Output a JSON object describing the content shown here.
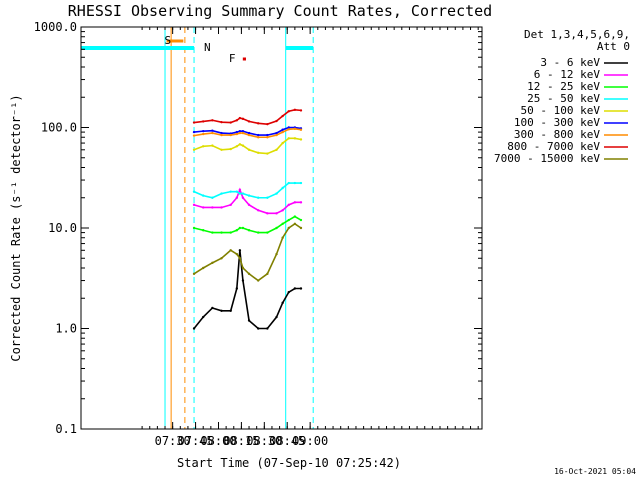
{
  "chart_data": {
    "type": "line",
    "title": "RHESSI Observing Summary Count Rates, Corrected",
    "xlabel": "Start Time (07-Sep-10 07:25:42)",
    "ylabel": "Corrected Count Rate (s⁻¹ detector⁻¹)",
    "x_ticks": [
      "07:30",
      "07:45",
      "08:00",
      "08:15",
      "08:30",
      "08:45",
      "09:00"
    ],
    "y_ticks": [
      "0.1",
      "1.0",
      "10.0",
      "100.0",
      "1000.0"
    ],
    "xlim_minutes_after_0730": [
      -4,
      13.5
    ],
    "ylim": [
      0.1,
      1000
    ],
    "y_scale": "log",
    "legend_header": [
      "Det 1,3,4,5,6,9,",
      "Att 0"
    ],
    "legend_position": "right",
    "timestamp": "16-Oct-2021 05:04",
    "flags": {
      "saa": {
        "label": "S",
        "color": "#ff8c00",
        "start": "07:26",
        "end": "07:37"
      },
      "night": {
        "label": "N",
        "color": "#00ffff",
        "start": "07:44",
        "end": "08:44"
      },
      "flare": {
        "label": "F",
        "color": "#dd0000",
        "start": "08:12",
        "end": "08:18"
      }
    },
    "vertical_lines": [
      {
        "time": "07:29",
        "color": "#ff8c00",
        "style": "solid"
      },
      {
        "time": "07:38",
        "color": "#ff8c00",
        "style": "dashed"
      },
      {
        "time": "07:25",
        "color": "#00ffff",
        "style": "solid"
      },
      {
        "time": "07:44",
        "color": "#00ffff",
        "style": "dashed"
      },
      {
        "time": "08:44",
        "color": "#00ffff",
        "style": "solid"
      },
      {
        "time": "09:02",
        "color": "#00ffff",
        "style": "dashed"
      }
    ],
    "x": [
      "07:44",
      "07:50",
      "07:56",
      "08:02",
      "08:08",
      "08:12",
      "08:14",
      "08:16",
      "08:20",
      "08:26",
      "08:32",
      "08:38",
      "08:42",
      "08:46",
      "08:50",
      "08:54"
    ],
    "series": [
      {
        "name": "3 - 6 keV",
        "color": "#000000",
        "values": [
          1.0,
          1.3,
          1.6,
          1.5,
          1.5,
          2.5,
          6.0,
          3.0,
          1.2,
          1.0,
          1.0,
          1.3,
          1.8,
          2.3,
          2.5,
          2.5
        ]
      },
      {
        "name": "6 - 12 keV",
        "color": "#ff00ff",
        "values": [
          17,
          16,
          16,
          16,
          17,
          20,
          24,
          20,
          17,
          15,
          14,
          14,
          15,
          17,
          18,
          18
        ]
      },
      {
        "name": "12 - 25 keV",
        "color": "#00ff00",
        "values": [
          10,
          9.5,
          9,
          9,
          9,
          9.5,
          10,
          10,
          9.5,
          9,
          9,
          10,
          11,
          12,
          13,
          12
        ]
      },
      {
        "name": "25 - 50 keV",
        "color": "#00ffff",
        "values": [
          23,
          21,
          20,
          22,
          23,
          23,
          22,
          22,
          21,
          20,
          20,
          22,
          25,
          28,
          28,
          28
        ]
      },
      {
        "name": "50 - 100 keV",
        "color": "#dddd00",
        "values": [
          60,
          65,
          66,
          60,
          61,
          65,
          68,
          66,
          60,
          56,
          55,
          60,
          70,
          78,
          78,
          76
        ]
      },
      {
        "name": "100 - 300 keV",
        "color": "#0000ff",
        "values": [
          90,
          92,
          93,
          88,
          87,
          90,
          92,
          92,
          88,
          84,
          84,
          88,
          95,
          100,
          100,
          98
        ]
      },
      {
        "name": "300 - 800 keV",
        "color": "#ff8c00",
        "values": [
          83,
          86,
          88,
          84,
          84,
          86,
          88,
          88,
          84,
          80,
          80,
          84,
          90,
          96,
          97,
          95
        ]
      },
      {
        "name": "800 - 7000 keV",
        "color": "#dd0000",
        "values": [
          112,
          115,
          118,
          113,
          112,
          118,
          124,
          122,
          115,
          110,
          108,
          116,
          130,
          145,
          150,
          148
        ]
      },
      {
        "name": "7000 - 15000 keV",
        "color": "#808000",
        "values": [
          3.5,
          4.0,
          4.5,
          5.0,
          6.0,
          5.5,
          5.0,
          4.0,
          3.5,
          3.0,
          3.5,
          5.5,
          8.0,
          10.0,
          11.0,
          10.0
        ]
      }
    ]
  }
}
